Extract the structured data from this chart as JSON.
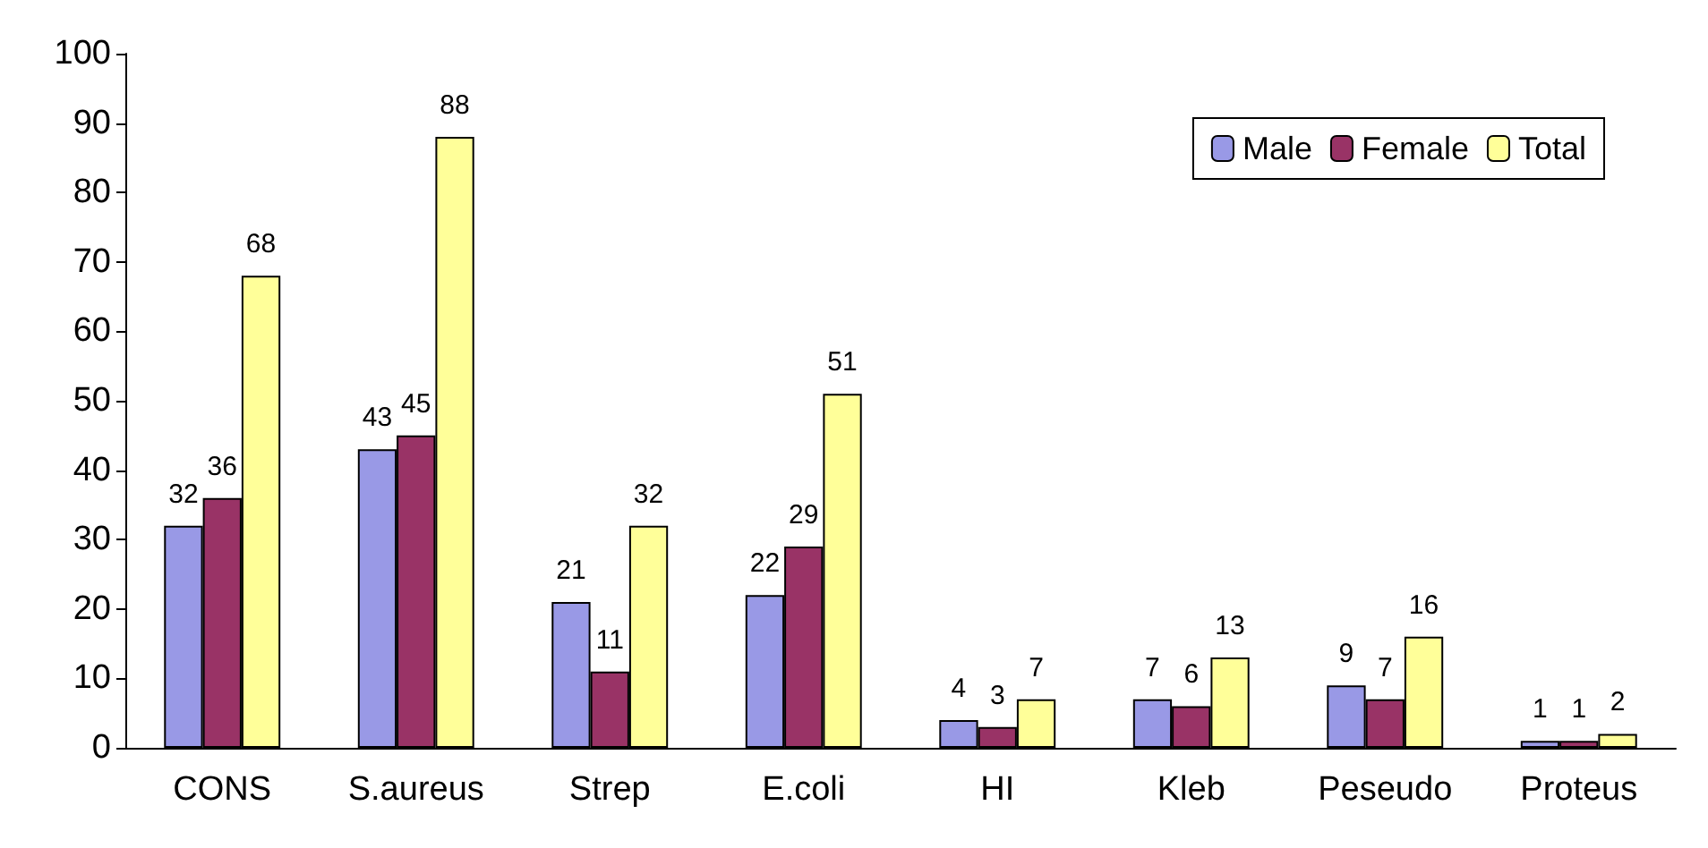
{
  "chart_data": {
    "type": "bar",
    "categories": [
      "CONS",
      "S.aureus",
      "Strep",
      "E.coli",
      "HI",
      "Kleb",
      "Peseudo",
      "Proteus"
    ],
    "series": [
      {
        "name": "Male",
        "color": "#9999e6",
        "values": [
          32,
          43,
          21,
          22,
          4,
          7,
          9,
          1
        ]
      },
      {
        "name": "Female",
        "color": "#993366",
        "values": [
          36,
          45,
          11,
          29,
          3,
          6,
          7,
          1
        ]
      },
      {
        "name": "Total",
        "color": "#ffff99",
        "values": [
          68,
          88,
          32,
          51,
          7,
          13,
          16,
          2
        ]
      }
    ],
    "ylim": [
      0,
      100
    ],
    "yticks": [
      0,
      10,
      20,
      30,
      40,
      50,
      60,
      70,
      80,
      90,
      100
    ],
    "grid": false,
    "legend": "top right",
    "data_labels": true
  }
}
